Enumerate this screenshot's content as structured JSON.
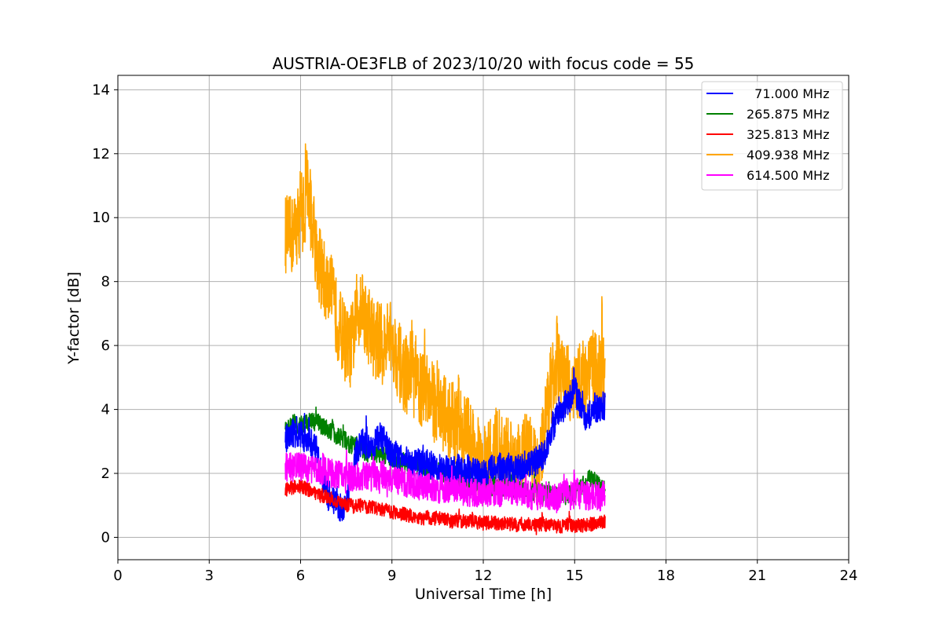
{
  "chart_data": {
    "type": "line",
    "title": "AUSTRIA-OE3FLB of 2023/10/20 with focus code = 55",
    "xlabel": "Universal Time [h]",
    "ylabel": "Y-factor [dB]",
    "xlim": [
      0,
      24
    ],
    "ylim": [
      -0.7,
      14.45
    ],
    "xticks": [
      0,
      3,
      6,
      9,
      12,
      15,
      18,
      21,
      24
    ],
    "yticks": [
      0,
      2,
      4,
      6,
      8,
      10,
      12,
      14
    ],
    "grid": true,
    "legend_position": "top-right",
    "series": [
      {
        "name": "  71.000 MHz",
        "color": "#0000ff",
        "x": [
          5.5,
          5.6,
          6.0,
          6.5,
          6.8,
          7.0,
          7.3,
          7.5,
          7.8,
          8.0,
          8.3,
          8.6,
          8.8,
          9.0,
          9.3,
          9.6,
          10.0,
          10.5,
          11.0,
          11.5,
          12.0,
          12.5,
          13.0,
          13.5,
          14.0,
          14.3,
          14.6,
          15.0,
          15.3,
          15.6,
          16.0
        ],
        "y": [
          3.0,
          3.3,
          3.2,
          2.8,
          1.4,
          1.3,
          0.9,
          1.0,
          2.6,
          3.0,
          2.7,
          3.2,
          2.9,
          2.6,
          2.5,
          2.4,
          2.3,
          2.2,
          2.1,
          2.0,
          2.0,
          2.2,
          2.1,
          2.2,
          2.6,
          3.6,
          4.0,
          4.6,
          3.8,
          3.9,
          4.1
        ],
        "noise": 0.45
      },
      {
        "name": "265.875 MHz",
        "color": "#008000",
        "x": [
          5.5,
          5.8,
          6.0,
          6.5,
          7.0,
          7.5,
          8.0,
          8.5,
          9.0,
          9.5,
          10.0,
          10.5,
          11.0,
          11.5,
          12.0,
          12.5,
          13.0,
          13.5,
          14.0,
          14.5,
          15.0,
          15.5,
          16.0
        ],
        "y": [
          3.3,
          3.6,
          3.5,
          3.6,
          3.3,
          3.0,
          2.7,
          2.6,
          2.5,
          2.3,
          2.2,
          2.0,
          1.9,
          1.8,
          1.6,
          1.6,
          1.5,
          1.4,
          1.4,
          1.3,
          1.4,
          1.8,
          1.5
        ],
        "noise": 0.3
      },
      {
        "name": "325.813 MHz",
        "color": "#ff0000",
        "x": [
          5.5,
          6.0,
          6.5,
          7.0,
          7.5,
          8.0,
          8.5,
          9.0,
          9.5,
          10.0,
          10.5,
          11.0,
          11.5,
          12.0,
          12.5,
          13.0,
          13.5,
          14.0,
          14.5,
          15.0,
          15.5,
          16.0
        ],
        "y": [
          1.5,
          1.6,
          1.4,
          1.2,
          1.0,
          1.0,
          0.9,
          0.8,
          0.7,
          0.6,
          0.6,
          0.5,
          0.5,
          0.45,
          0.45,
          0.4,
          0.4,
          0.4,
          0.35,
          0.35,
          0.4,
          0.5
        ],
        "noise": 0.22
      },
      {
        "name": "409.938 MHz",
        "color": "#ffa500",
        "x": [
          5.5,
          5.7,
          6.0,
          6.3,
          6.6,
          7.0,
          7.3,
          7.6,
          8.0,
          8.3,
          8.7,
          9.0,
          9.3,
          9.7,
          10.0,
          10.5,
          11.0,
          11.5,
          12.0,
          12.5,
          13.0,
          13.5,
          13.8,
          14.2,
          14.6,
          15.0,
          15.5,
          16.0
        ],
        "y": [
          9.5,
          9.4,
          10.0,
          10.4,
          8.5,
          7.5,
          6.5,
          5.8,
          7.4,
          6.3,
          6.0,
          6.2,
          5.3,
          4.8,
          4.6,
          4.1,
          3.6,
          3.2,
          2.2,
          2.8,
          2.3,
          2.8,
          1.9,
          4.8,
          5.0,
          4.7,
          5.2,
          5.0
        ],
        "noise": 1.25
      },
      {
        "name": "614.500 MHz",
        "color": "#ff00ff",
        "x": [
          5.5,
          6.0,
          6.5,
          7.0,
          7.5,
          8.0,
          8.5,
          9.0,
          9.5,
          10.0,
          10.5,
          11.0,
          11.5,
          12.0,
          12.5,
          13.0,
          13.5,
          14.0,
          14.5,
          15.0,
          15.5,
          16.0
        ],
        "y": [
          2.2,
          2.2,
          2.1,
          2.0,
          1.9,
          1.9,
          1.9,
          1.8,
          1.7,
          1.6,
          1.5,
          1.5,
          1.4,
          1.4,
          1.4,
          1.4,
          1.3,
          1.3,
          1.3,
          1.3,
          1.3,
          1.3
        ],
        "noise": 0.45
      }
    ]
  }
}
